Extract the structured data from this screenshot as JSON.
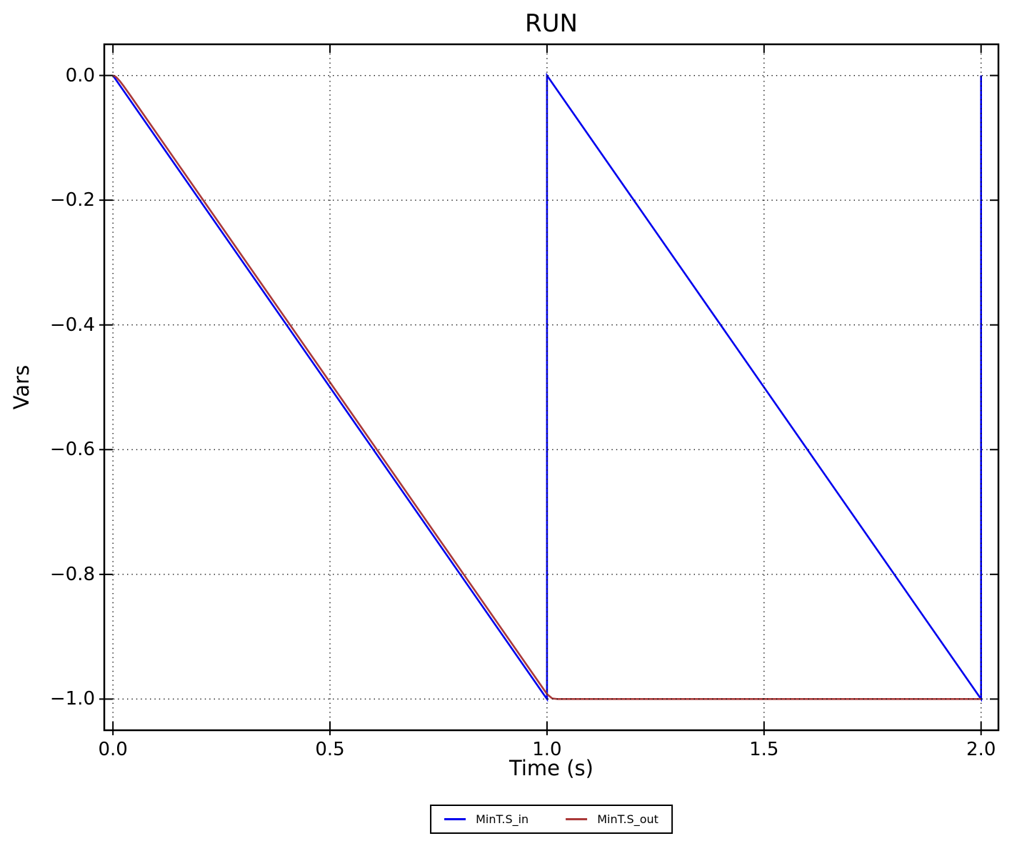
{
  "figure": {
    "title": "RUN",
    "xlabel": "Time (s)",
    "ylabel": "Vars"
  },
  "chart_data": {
    "type": "line",
    "title": "RUN",
    "xlabel": "Time (s)",
    "ylabel": "Vars",
    "xlim": [
      -0.02,
      2.04
    ],
    "ylim": [
      -1.05,
      0.05
    ],
    "grid": "dotted",
    "grid_color": "#111111",
    "legend_position": "bottom-center",
    "x_ticks": {
      "values": [
        0.0,
        0.5,
        1.0,
        1.5,
        2.0
      ],
      "labels": [
        "0.0",
        "0.5",
        "1.0",
        "1.5",
        "2.0"
      ]
    },
    "y_ticks": {
      "values": [
        0.0,
        -0.2,
        -0.4,
        -0.6,
        -0.8,
        -1.0
      ],
      "labels": [
        "0.0",
        "−0.2",
        "−0.4",
        "−0.6",
        "−0.8",
        "−1.0"
      ]
    },
    "series": [
      {
        "name": "MinT.S_in",
        "color": "#0000EE",
        "shape": "sawtooth: falls 0 to -1 on [0,1], vertical reset to 0 at t=1, falls 0 to -1 on [1,2], vertical reset to 0 at t=2",
        "points": [
          [
            0.0,
            0.0
          ],
          [
            1.0,
            -1.0
          ],
          [
            1.0,
            0.0
          ],
          [
            2.0,
            -1.0
          ],
          [
            2.0,
            0.0
          ]
        ]
      },
      {
        "name": "MinT.S_out",
        "color": "#AA3939",
        "shape": "tracks input with small first-order lag on [0,1], then holds running minimum -1 on [1,2]",
        "points": [
          [
            0.0,
            0.0
          ],
          [
            0.004,
            -0.0009
          ],
          [
            0.008,
            -0.0029
          ],
          [
            0.016,
            -0.0091
          ],
          [
            0.024,
            -0.0164
          ],
          [
            0.04,
            -0.032
          ],
          [
            0.08,
            -0.072
          ],
          [
            0.15,
            -0.142
          ],
          [
            0.3,
            -0.292
          ],
          [
            0.5,
            -0.492
          ],
          [
            0.75,
            -0.742
          ],
          [
            1.0,
            -0.992
          ],
          [
            1.012,
            -0.999
          ],
          [
            1.025,
            -1.0
          ],
          [
            2.0,
            -1.0
          ]
        ]
      }
    ]
  }
}
